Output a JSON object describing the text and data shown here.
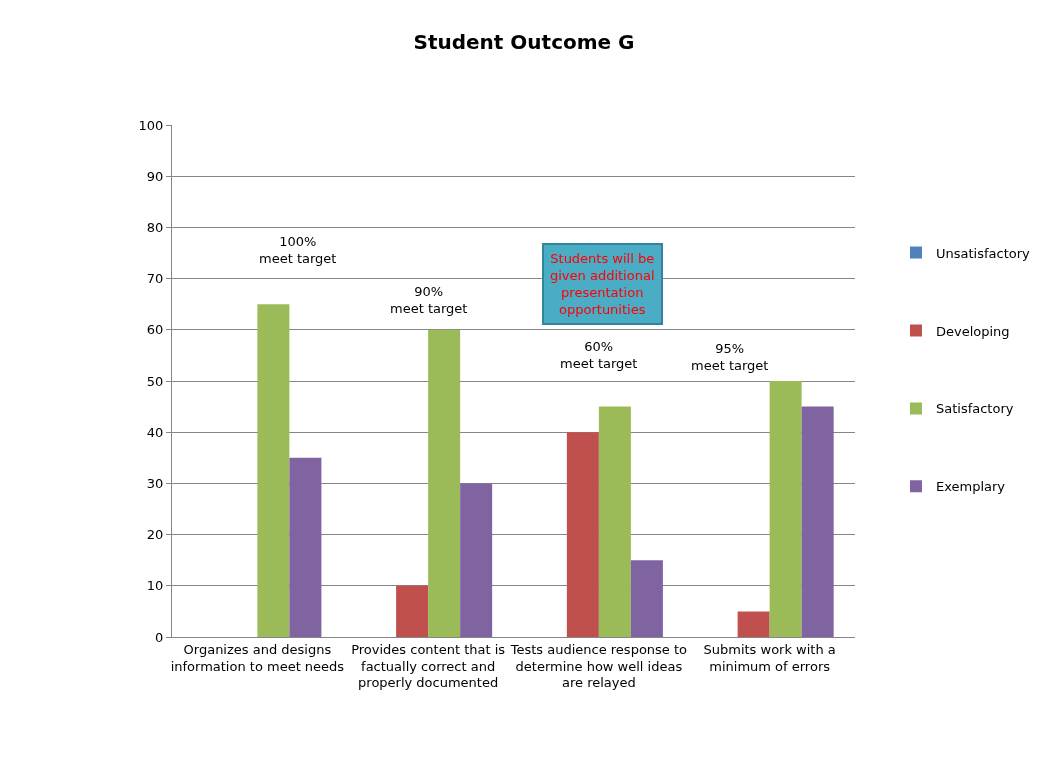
{
  "chart_data": {
    "type": "bar",
    "title": "Student Outcome G",
    "categories": [
      "Organizes and designs\ninformation to meet needs",
      "Provides content that is\nfactually correct and\nproperly documented",
      "Tests audience response to\ndetermine how well ideas\nare relayed",
      "Submits work with a\nminimum of errors"
    ],
    "series": [
      {
        "name": "Unsatisfactory",
        "color": "#4f81bd",
        "values": [
          0,
          0,
          0,
          0
        ]
      },
      {
        "name": "Developing",
        "color": "#c0504d",
        "values": [
          0,
          10,
          40,
          5
        ]
      },
      {
        "name": "Satisfactory",
        "color": "#9bbb59",
        "values": [
          65,
          60,
          45,
          50
        ]
      },
      {
        "name": "Exemplary",
        "color": "#8064a2",
        "values": [
          35,
          30,
          15,
          45
        ]
      }
    ],
    "ylim": [
      0,
      100
    ],
    "yticks": [
      0,
      10,
      20,
      30,
      40,
      50,
      60,
      70,
      80,
      90,
      100
    ],
    "grid": "y",
    "legend": "right",
    "annotations": [
      "100%\nmeet target",
      "90%\nmeet target",
      "60%\nmeet target",
      "95%\nmeet target",
      "Students will be\ngiven additional\npresentation\nopportunities"
    ]
  }
}
